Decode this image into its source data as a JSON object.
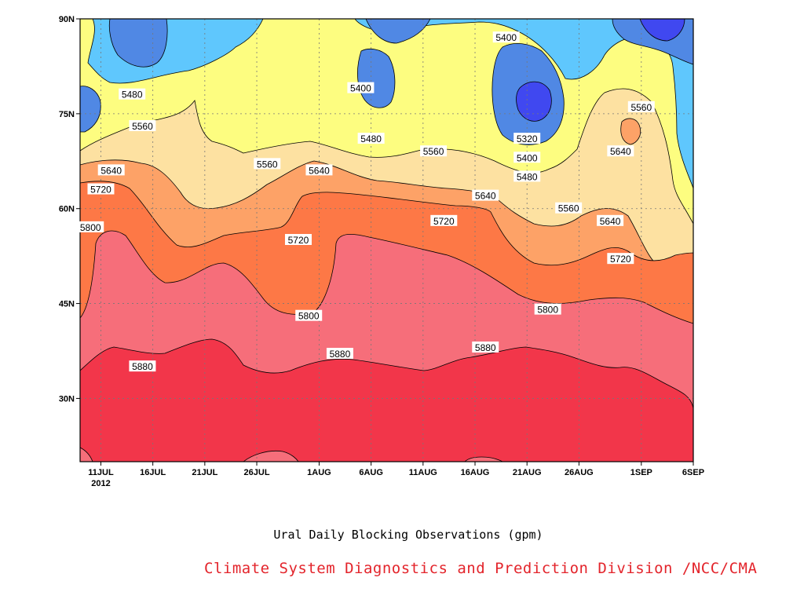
{
  "caption": "Ural Daily Blocking Observations (gpm)",
  "credit": "Climate System Diagnostics and Prediction Division /NCC/CMA",
  "chart_data": {
    "type": "contour",
    "x_axis": {
      "ticks": [
        "11JUL",
        "16JUL",
        "21JUL",
        "26JUL",
        "1AUG",
        "6AUG",
        "11AUG",
        "16AUG",
        "21AUG",
        "26AUG",
        "1SEP",
        "6SEP"
      ],
      "year_label": "2012",
      "range": [
        "2012-07-09",
        "2012-09-06"
      ]
    },
    "y_axis": {
      "ticks": [
        "90N",
        "75N",
        "60N",
        "45N",
        "30N"
      ],
      "range": [
        20,
        90
      ],
      "tick_values": [
        90,
        75,
        60,
        45,
        30
      ]
    },
    "levels": [
      5320,
      5400,
      5480,
      5560,
      5640,
      5720,
      5800,
      5880
    ],
    "colors": {
      "above_5880": "#f2364a",
      "5800_5880": "#f66e7a",
      "5720_5800": "#fd7846",
      "5640_5720": "#fda267",
      "5560_5640": "#fde1a1",
      "5480_5560": "#fdfd80",
      "5400_5480": "#5fc7fd",
      "5320_5400": "#5088e4",
      "below_5320": "#4048f0"
    },
    "contour_labels": [
      {
        "value": "5400",
        "date": "2012-08-05",
        "lat": 79
      },
      {
        "value": "5400",
        "date": "2012-08-19",
        "lat": 87
      },
      {
        "value": "5480",
        "date": "2012-07-14",
        "lat": 78
      },
      {
        "value": "5560",
        "date": "2012-09-01",
        "lat": 76
      },
      {
        "value": "5560",
        "date": "2012-07-15",
        "lat": 73
      },
      {
        "value": "5320",
        "date": "2012-08-21",
        "lat": 71
      },
      {
        "value": "5480",
        "date": "2012-08-06",
        "lat": 71
      },
      {
        "value": "5560",
        "date": "2012-08-12",
        "lat": 69
      },
      {
        "value": "5400",
        "date": "2012-08-21",
        "lat": 68
      },
      {
        "value": "5640",
        "date": "2012-08-30",
        "lat": 69
      },
      {
        "value": "5560",
        "date": "2012-07-27",
        "lat": 67
      },
      {
        "value": "5640",
        "date": "2012-07-12",
        "lat": 66
      },
      {
        "value": "5640",
        "date": "2012-08-01",
        "lat": 66
      },
      {
        "value": "5480",
        "date": "2012-08-21",
        "lat": 65
      },
      {
        "value": "5720",
        "date": "2012-07-11",
        "lat": 63
      },
      {
        "value": "5640",
        "date": "2012-08-17",
        "lat": 62
      },
      {
        "value": "5560",
        "date": "2012-08-25",
        "lat": 60
      },
      {
        "value": "5720",
        "date": "2012-08-13",
        "lat": 58
      },
      {
        "value": "5640",
        "date": "2012-08-29",
        "lat": 58
      },
      {
        "value": "5800",
        "date": "2012-07-10",
        "lat": 57
      },
      {
        "value": "5720",
        "date": "2012-07-30",
        "lat": 55
      },
      {
        "value": "5720",
        "date": "2012-08-30",
        "lat": 52
      },
      {
        "value": "5800",
        "date": "2012-08-23",
        "lat": 44
      },
      {
        "value": "5800",
        "date": "2012-07-31",
        "lat": 43
      },
      {
        "value": "5880",
        "date": "2012-08-17",
        "lat": 38
      },
      {
        "value": "5880",
        "date": "2012-08-03",
        "lat": 37
      },
      {
        "value": "5880",
        "date": "2012-07-15",
        "lat": 35
      }
    ]
  }
}
